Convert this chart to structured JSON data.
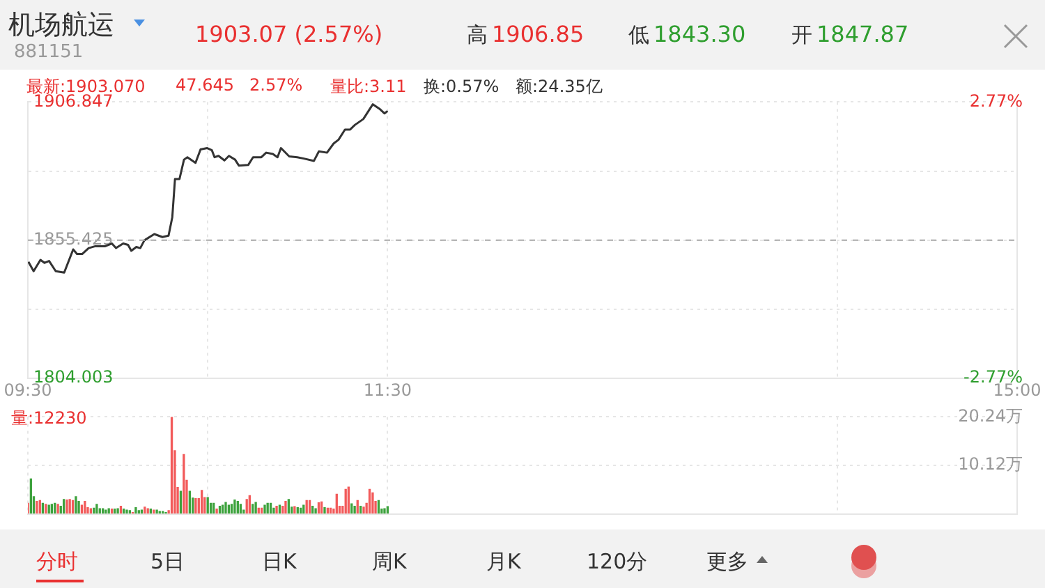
{
  "chart_data": [
    {
      "type": "line",
      "title": "机场航运",
      "subtitle": "881151",
      "annotations": [
        "1903.07 (2.57%)",
        "高",
        "1906.85",
        "低",
        "1843.30",
        "开",
        "1847.87",
        "最新:1903.070",
        "47.645",
        "2.57%",
        "量比:3.11",
        "换:0.57%",
        "额:24.35亿",
        "分时",
        "5日",
        "日K",
        "周K",
        "月K",
        "120分",
        "更多"
      ],
      "x": [
        9.503,
        9.532,
        9.57,
        9.592,
        9.618,
        9.655,
        9.702,
        9.752,
        9.773,
        9.802,
        9.838,
        9.875,
        9.93,
        9.967,
        9.99,
        10.03,
        10.057,
        10.075,
        10.103,
        10.125,
        10.148,
        10.203,
        10.248,
        10.282,
        10.303,
        10.318,
        10.343,
        10.368,
        10.387,
        10.432,
        10.46,
        10.497,
        10.523,
        10.538,
        10.56,
        10.593,
        10.618,
        10.652,
        10.673,
        10.725,
        10.752,
        10.798,
        10.825,
        10.862,
        10.888,
        10.907,
        10.953,
        10.998,
        11.035,
        11.09,
        11.118,
        11.163,
        11.2,
        11.227,
        11.263,
        11.292,
        11.318,
        11.365,
        11.418,
        11.455,
        11.483,
        11.5
      ],
      "series": [
        {
          "color": "#333333",
          "values": [
            1847.4,
            1843.9,
            1848.1,
            1847.0,
            1847.7,
            1843.9,
            1843.4,
            1852.0,
            1850.3,
            1850.3,
            1852.5,
            1853.2,
            1853.2,
            1854.2,
            1852.5,
            1854.2,
            1853.7,
            1851.5,
            1852.9,
            1852.5,
            1855.4,
            1857.7,
            1856.6,
            1857.1,
            1864.0,
            1878.2,
            1878.2,
            1885.4,
            1886.3,
            1884.2,
            1889.2,
            1889.7,
            1888.9,
            1886.3,
            1886.8,
            1885.1,
            1886.8,
            1885.4,
            1883.2,
            1883.4,
            1886.3,
            1886.3,
            1888.0,
            1887.5,
            1886.3,
            1889.7,
            1886.6,
            1886.3,
            1885.8,
            1884.9,
            1888.5,
            1888.0,
            1891.4,
            1892.8,
            1896.6,
            1896.6,
            1898.3,
            1900.5,
            1906.0,
            1904.3,
            1902.6,
            1903.5
          ]
        }
      ],
      "xlim": [
        9.5,
        15
      ],
      "xticks": [
        {
          "value": 9.5,
          "label": "09:30"
        },
        {
          "value": 10.5,
          "label": null
        },
        {
          "value": 11.5,
          "label": "11:30"
        },
        {
          "value": 14,
          "label": null
        },
        {
          "value": 15,
          "label": "15:00"
        }
      ],
      "ylim": [
        1804.003,
        1906.847
      ],
      "yticks": [
        1804.003,
        {
          "value": 1829.714,
          "label": null
        },
        1855.425,
        {
          "value": 1881.136,
          "label": null
        },
        1906.847
      ],
      "y2lim": [
        -2.77,
        2.77
      ],
      "y2ticks": [
        {
          "value": -2.77,
          "label": "-2.77%"
        },
        {
          "value": 2.77,
          "label": "2.77%"
        }
      ],
      "grid": true,
      "ref_lines": [
        {
          "axis": "y",
          "value": 1855.425,
          "color": "#aaaaaa",
          "line_style": "dashed"
        }
      ]
    },
    {
      "type": "bar",
      "annotations": [
        "量:12230"
      ],
      "x": [
        9.5,
        9.517,
        9.533,
        9.55,
        9.567,
        9.583,
        9.6,
        9.617,
        9.633,
        9.65,
        9.667,
        9.683,
        9.7,
        9.717,
        9.733,
        9.75,
        9.767,
        9.783,
        9.8,
        9.817,
        9.833,
        9.85,
        9.867,
        9.883,
        9.9,
        9.917,
        9.933,
        9.95,
        9.967,
        9.983,
        10.0,
        10.017,
        10.033,
        10.05,
        10.067,
        10.083,
        10.1,
        10.117,
        10.133,
        10.15,
        10.167,
        10.183,
        10.2,
        10.217,
        10.233,
        10.25,
        10.267,
        10.283,
        10.3,
        10.317,
        10.333,
        10.35,
        10.367,
        10.383,
        10.4,
        10.417,
        10.433,
        10.45,
        10.467,
        10.483,
        10.5,
        10.517,
        10.533,
        10.55,
        10.567,
        10.583,
        10.6,
        10.617,
        10.633,
        10.65,
        10.667,
        10.683,
        10.7,
        10.717,
        10.733,
        10.75,
        10.767,
        10.783,
        10.8,
        10.817,
        10.833,
        10.85,
        10.867,
        10.883,
        10.9,
        10.917,
        10.933,
        10.95,
        10.967,
        10.983,
        11.0,
        11.017,
        11.033,
        11.05,
        11.067,
        11.083,
        11.1,
        11.117,
        11.133,
        11.15,
        11.167,
        11.183,
        11.2,
        11.217,
        11.233,
        11.25,
        11.267,
        11.283,
        11.3,
        11.317,
        11.333,
        11.35,
        11.367,
        11.383,
        11.4,
        11.417,
        11.433,
        11.45,
        11.467,
        11.483,
        11.5
      ],
      "values": [
        2.2,
        7.3,
        3.6,
        2.6,
        2.8,
        2.2,
        2.0,
        1.8,
        2.0,
        2.2,
        2.0,
        1.6,
        3.0,
        2.9,
        3.0,
        2.8,
        3.6,
        2.6,
        1.8,
        2.6,
        1.3,
        1.1,
        1.2,
        2.0,
        1.1,
        1.1,
        0.8,
        1.1,
        1.0,
        1.0,
        1.1,
        1.6,
        1.0,
        0.8,
        0.7,
        0.3,
        1.3,
        0.7,
        0.8,
        1.4,
        1.1,
        1.0,
        0.8,
        0.8,
        0.5,
        0.5,
        0.3,
        0.7,
        20.2,
        13.2,
        5.5,
        4.7,
        12.4,
        7.0,
        4.7,
        3.3,
        3.2,
        3.2,
        4.9,
        3.4,
        3.4,
        2.2,
        2.2,
        1.0,
        1.6,
        1.8,
        2.4,
        1.8,
        2.0,
        2.9,
        2.6,
        2.0,
        0.8,
        3.0,
        3.8,
        2.0,
        2.4,
        1.2,
        1.2,
        1.8,
        2.2,
        2.2,
        1.2,
        1.6,
        1.8,
        1.6,
        2.6,
        3.0,
        1.4,
        1.5,
        1.3,
        1.2,
        1.8,
        2.8,
        2.8,
        1.6,
        1.1,
        2.3,
        2.5,
        1.3,
        1.2,
        1.2,
        1.0,
        4.1,
        1.6,
        1.6,
        5.1,
        5.6,
        2.1,
        1.6,
        2.8,
        1.6,
        1.4,
        2.2,
        5.1,
        4.4,
        2.6,
        2.8,
        1.0,
        1.1,
        1.5
      ],
      "colors": [
        "#f25a5a",
        "#3da23d",
        "#3da23d",
        "#f25a5a",
        "#f25a5a",
        "#3da23d",
        "#f25a5a",
        "#3da23d",
        "#3da23d",
        "#3da23d",
        "#f25a5a",
        "#3da23d",
        "#3da23d",
        "#f25a5a",
        "#f25a5a",
        "#f25a5a",
        "#3da23d",
        "#3da23d",
        "#f25a5a",
        "#f25a5a",
        "#f25a5a",
        "#f25a5a",
        "#3da23d",
        "#3da23d",
        "#3da23d",
        "#3da23d",
        "#3da23d",
        "#3da23d",
        "#f25a5a",
        "#3da23d",
        "#3da23d",
        "#f25a5a",
        "#3da23d",
        "#3da23d",
        "#3da23d",
        "#f25a5a",
        "#3da23d",
        "#3da23d",
        "#3da23d",
        "#f25a5a",
        "#f25a5a",
        "#3da23d",
        "#f25a5a",
        "#3da23d",
        "#3da23d",
        "#3da23d",
        "#3da23d",
        "#f25a5a",
        "#f25a5a",
        "#f25a5a",
        "#f25a5a",
        "#3da23d",
        "#f25a5a",
        "#f25a5a",
        "#3da23d",
        "#3da23d",
        "#f25a5a",
        "#f25a5a",
        "#f25a5a",
        "#f25a5a",
        "#3da23d",
        "#3da23d",
        "#3da23d",
        "#f25a5a",
        "#3da23d",
        "#3da23d",
        "#3da23d",
        "#3da23d",
        "#3da23d",
        "#3da23d",
        "#3da23d",
        "#3da23d",
        "#3da23d",
        "#f25a5a",
        "#f25a5a",
        "#3da23d",
        "#3da23d",
        "#f25a5a",
        "#f25a5a",
        "#3da23d",
        "#3da23d",
        "#3da23d",
        "#3da23d",
        "#f25a5a",
        "#3da23d",
        "#f25a5a",
        "#f25a5a",
        "#3da23d",
        "#3da23d",
        "#f25a5a",
        "#3da23d",
        "#3da23d",
        "#3da23d",
        "#f25a5a",
        "#f25a5a",
        "#3da23d",
        "#3da23d",
        "#f25a5a",
        "#f25a5a",
        "#3da23d",
        "#f25a5a",
        "#f25a5a",
        "#f25a5a",
        "#f25a5a",
        "#f25a5a",
        "#f25a5a",
        "#f25a5a",
        "#f25a5a",
        "#3da23d",
        "#3da23d",
        "#f25a5a",
        "#3da23d",
        "#f25a5a",
        "#f25a5a",
        "#f25a5a",
        "#f25a5a",
        "#f25a5a",
        "#3da23d",
        "#3da23d",
        "#3da23d",
        "#3da23d"
      ],
      "xlim": [
        9.5,
        15
      ],
      "xticks": [
        {
          "value": 9.5,
          "label": null
        },
        {
          "value": 10.5,
          "label": null
        },
        {
          "value": 11.5,
          "label": null
        },
        {
          "value": 14,
          "label": null
        },
        {
          "value": 15,
          "label": null
        }
      ],
      "ylim": [
        0,
        20.24
      ],
      "yticks": [
        {
          "value": 0,
          "label": null
        },
        {
          "value": 10.12,
          "label": "10.12万"
        },
        {
          "value": 20.24,
          "label": "20.24万"
        }
      ],
      "tick_labels": "y",
      "grid": true
    }
  ]
}
